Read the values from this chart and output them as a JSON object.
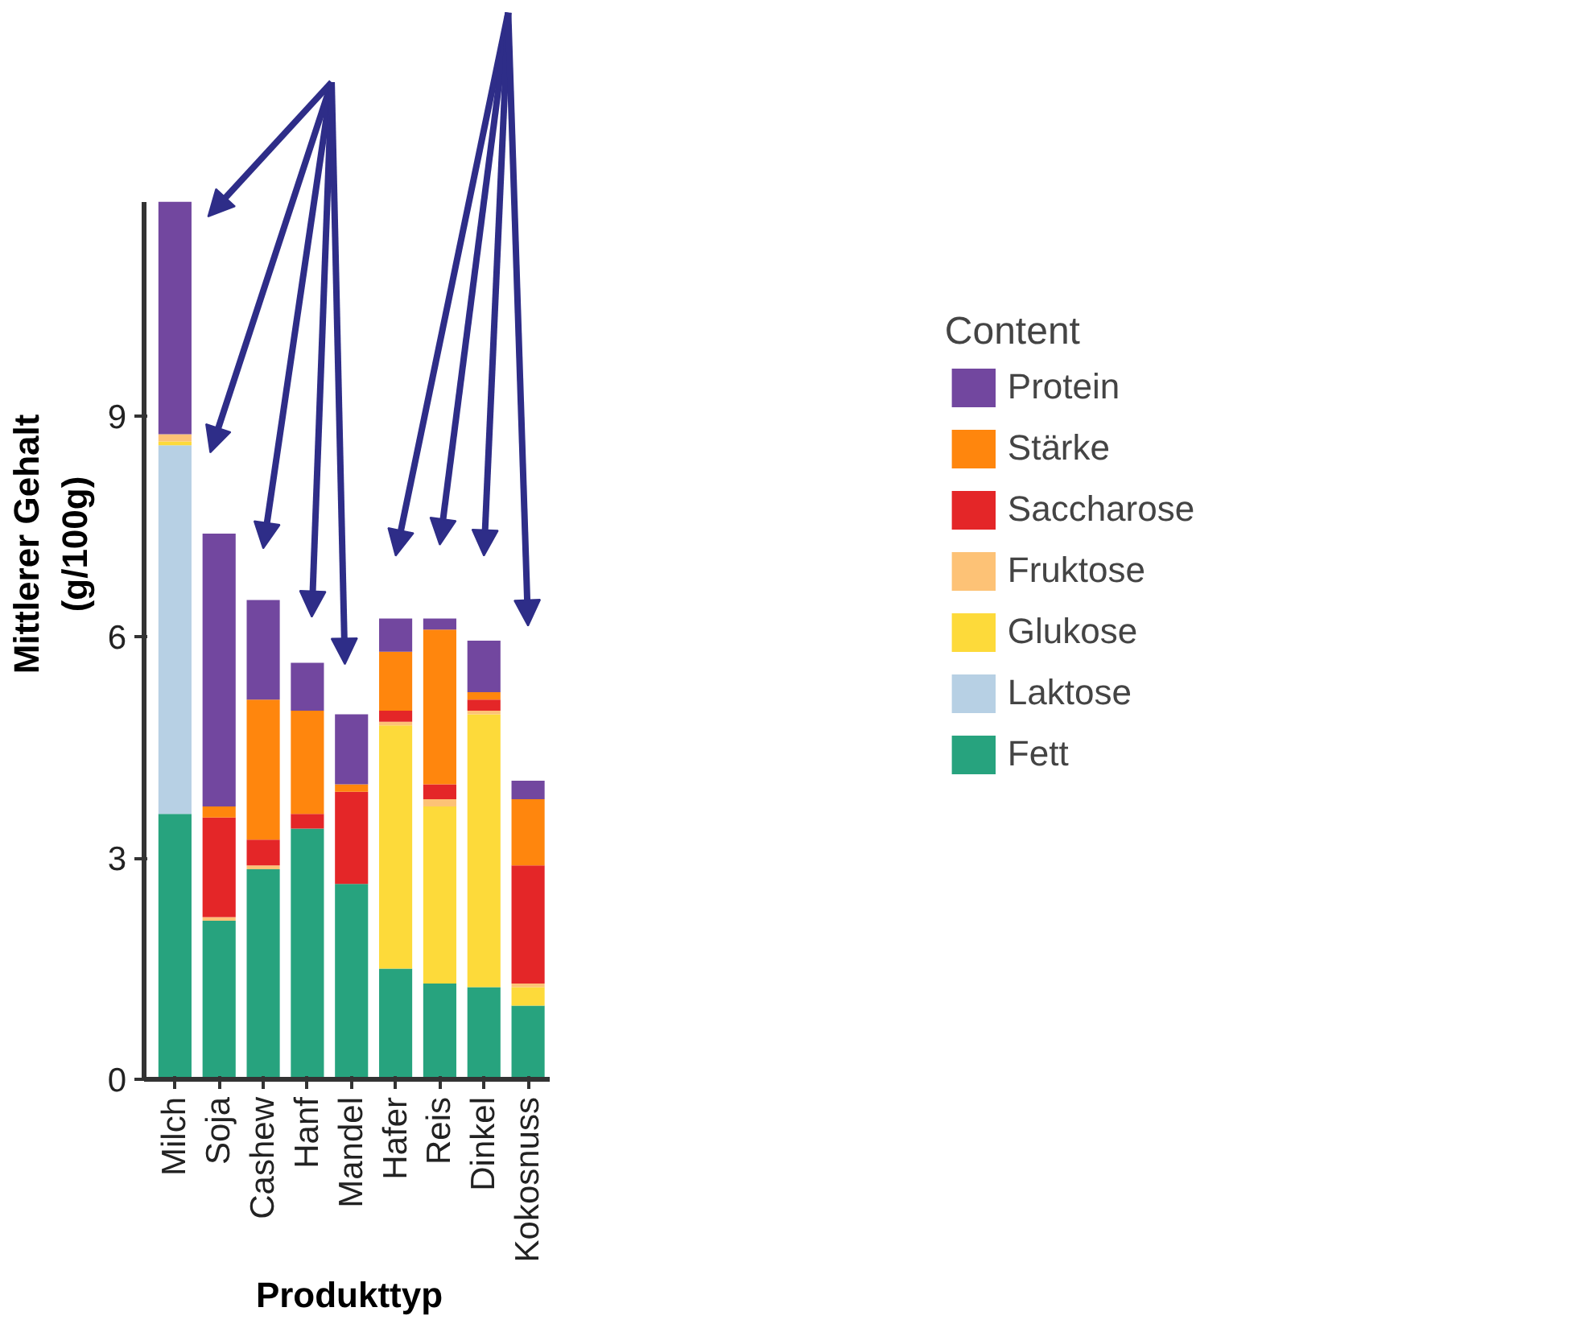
{
  "chart_data": {
    "type": "bar",
    "stacked": true,
    "xlabel": "Produkttyp",
    "ylabel": "Mittlerer Gehalt (g/100g)",
    "legend_title": "Content",
    "legend": "right",
    "categories": [
      "Milch",
      "Soja",
      "Cashew",
      "Hanf",
      "Mandel",
      "Hafer",
      "Reis",
      "Dinkel",
      "Kokosnuss"
    ],
    "ylim": [
      0,
      11.9
    ],
    "yticks": [
      0,
      3,
      6,
      9
    ],
    "grid": false,
    "series": [
      {
        "name": "Fett",
        "color": "#1b9e77",
        "values": [
          3.6,
          2.15,
          2.85,
          3.4,
          2.65,
          1.5,
          1.3,
          1.25,
          1.0
        ]
      },
      {
        "name": "Laktose",
        "color": "#b3cde3",
        "values": [
          5.0,
          0,
          0,
          0,
          0,
          0,
          0,
          0,
          0
        ]
      },
      {
        "name": "Glukose",
        "color": "#fdd82f",
        "values": [
          0.05,
          0,
          0,
          0,
          0,
          3.3,
          2.4,
          3.7,
          0.25
        ]
      },
      {
        "name": "Fruktose",
        "color": "#fdbf6f",
        "values": [
          0.1,
          0.05,
          0.05,
          0,
          0,
          0.05,
          0.1,
          0.05,
          0.05
        ]
      },
      {
        "name": "Saccharose",
        "color": "#e31a1c",
        "values": [
          0,
          1.35,
          0.35,
          0.2,
          1.25,
          0.15,
          0.2,
          0.15,
          1.6
        ]
      },
      {
        "name": "Stärke",
        "color": "#ff7f00",
        "values": [
          0,
          0.15,
          1.9,
          1.4,
          0.1,
          0.8,
          2.1,
          0.1,
          0.9
        ]
      },
      {
        "name": "Protein",
        "color": "#6a3d9a",
        "values": [
          3.15,
          3.7,
          1.35,
          0.65,
          0.95,
          0.45,
          0.15,
          0.7,
          0.25
        ]
      }
    ]
  }
}
